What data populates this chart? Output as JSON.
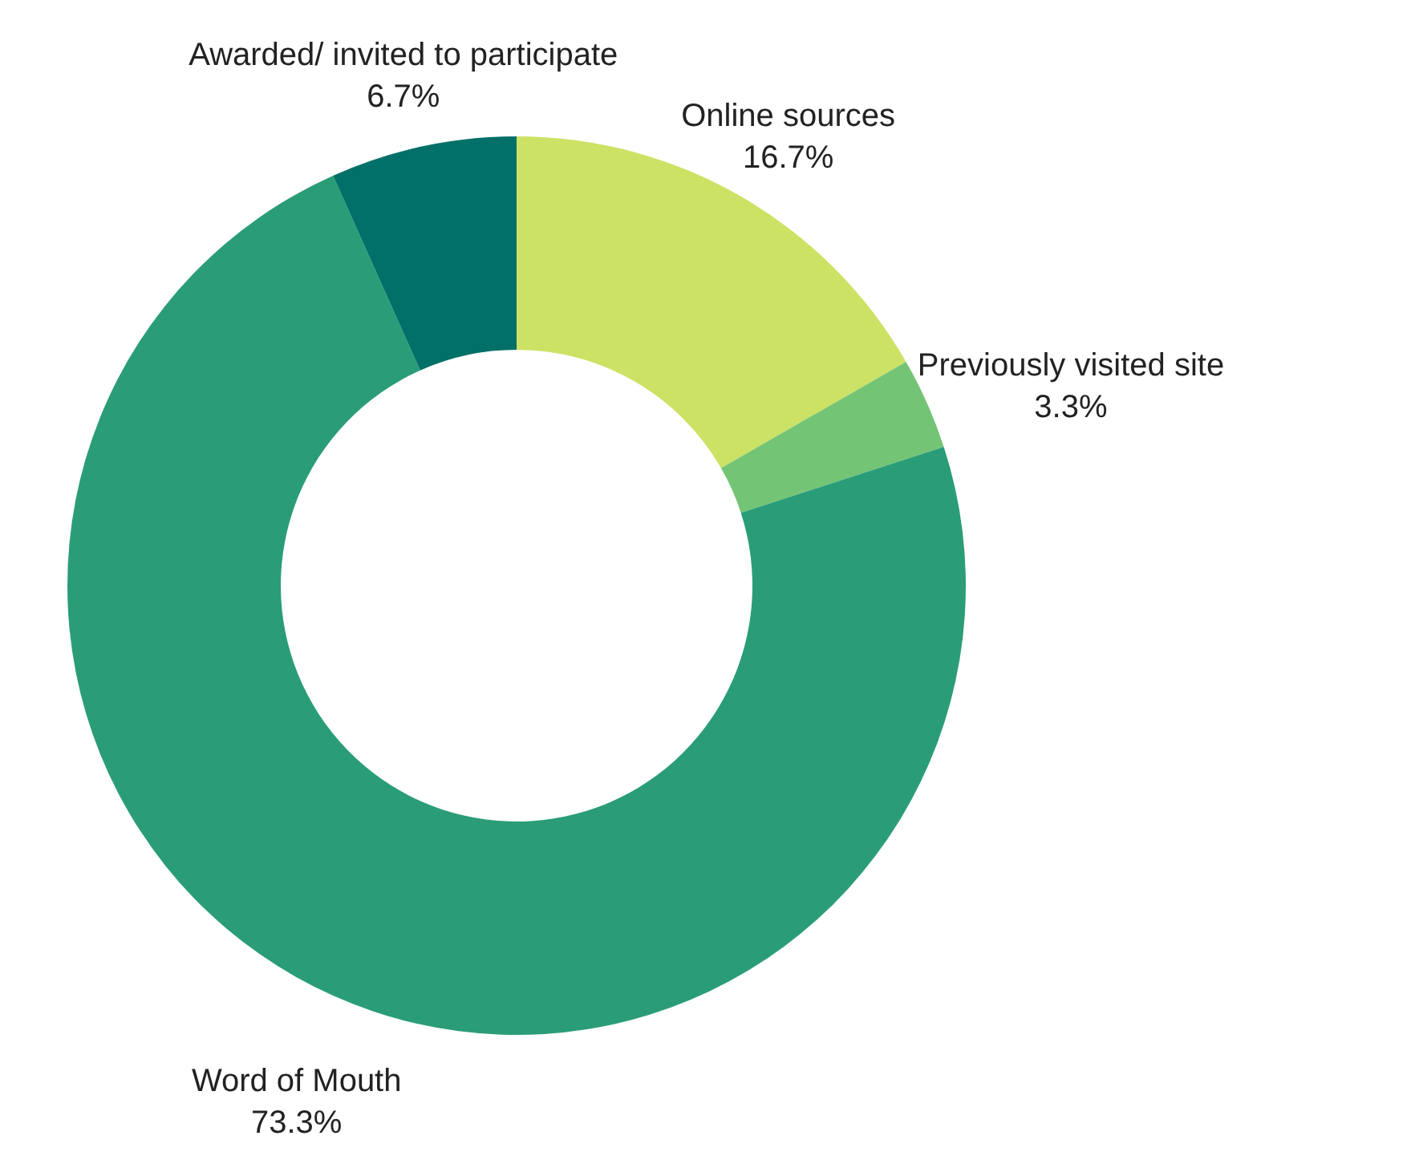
{
  "chart_data": {
    "type": "donut",
    "categories": [
      "Online sources",
      "Previously visited site",
      "Word of Mouth",
      "Awarded/ invited to participate"
    ],
    "values": [
      16.7,
      3.3,
      73.3,
      6.7
    ],
    "colors": [
      "#cce265",
      "#74c476",
      "#2a9d78",
      "#007068"
    ],
    "value_labels": [
      "16.7%",
      "3.3%",
      "73.3%",
      "6.7%"
    ]
  }
}
